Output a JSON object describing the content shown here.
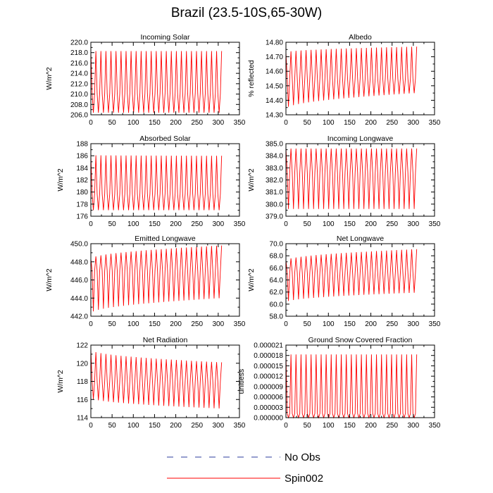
{
  "title": "Brazil (23.5-10S,65-30W)",
  "accent_color": "#ff0000",
  "noobs_color": "#2c3e9e",
  "legend": [
    {
      "label": "No Obs",
      "style": "dashed"
    },
    {
      "label": "Spin002",
      "style": "solid"
    }
  ],
  "chart_data": [
    {
      "type": "line",
      "title": "Incoming Solar",
      "ylabel": "W/m^2",
      "xlim": [
        0,
        350
      ],
      "ylim": [
        206,
        220
      ],
      "xticks": [
        "0",
        "50",
        "100",
        "150",
        "200",
        "250",
        "300",
        "350"
      ],
      "yticks": [
        {
          "v": 206,
          "t": "206.0"
        },
        {
          "v": 208,
          "t": "208.0"
        },
        {
          "v": 210,
          "t": "210.0"
        },
        {
          "v": 212,
          "t": "212.0"
        },
        {
          "v": 214,
          "t": "214.0"
        },
        {
          "v": 216,
          "t": "216.0"
        },
        {
          "v": 218,
          "t": "218.0"
        },
        {
          "v": 220,
          "t": "220.0"
        }
      ],
      "series": [
        {
          "name": "Spin002",
          "years": 26,
          "months_per_year": 12,
          "xmax": 308,
          "segments": [
            {
              "start_low": 206.4,
              "start_high": 218.3,
              "end_low": 206.4,
              "end_high": 218.3,
              "mid": 210.1
            }
          ]
        }
      ]
    },
    {
      "type": "line",
      "title": "Albedo",
      "ylabel": "% reflected",
      "xlim": [
        0,
        350
      ],
      "ylim": [
        14.3,
        14.8
      ],
      "xticks": [
        "0",
        "50",
        "100",
        "150",
        "200",
        "250",
        "300",
        "350"
      ],
      "yticks": [
        {
          "v": 14.3,
          "t": "14.30"
        },
        {
          "v": 14.4,
          "t": "14.40"
        },
        {
          "v": 14.5,
          "t": "14.50"
        },
        {
          "v": 14.6,
          "t": "14.60"
        },
        {
          "v": 14.7,
          "t": "14.70"
        },
        {
          "v": 14.8,
          "t": "14.80"
        }
      ],
      "series": [
        {
          "name": "Spin002",
          "years": 26,
          "months_per_year": 12,
          "xmax": 308,
          "segments": [
            {
              "start_low": 14.34,
              "start_high": 14.73,
              "end_low": 14.45,
              "end_high": 14.77,
              "mid": 14.55
            }
          ]
        }
      ]
    },
    {
      "type": "line",
      "title": "Absorbed Solar",
      "ylabel": "W/m^2",
      "xlim": [
        0,
        350
      ],
      "ylim": [
        176,
        188
      ],
      "xticks": [
        "0",
        "50",
        "100",
        "150",
        "200",
        "250",
        "300",
        "350"
      ],
      "yticks": [
        {
          "v": 176,
          "t": "176"
        },
        {
          "v": 178,
          "t": "178"
        },
        {
          "v": 180,
          "t": "180"
        },
        {
          "v": 182,
          "t": "182"
        },
        {
          "v": 184,
          "t": "184"
        },
        {
          "v": 186,
          "t": "186"
        },
        {
          "v": 188,
          "t": "188"
        }
      ],
      "series": [
        {
          "name": "Spin002",
          "years": 26,
          "months_per_year": 12,
          "xmax": 308,
          "segments": [
            {
              "start_low": 177.0,
              "start_high": 186.1,
              "end_low": 177.0,
              "end_high": 186.0,
              "mid": 179.7
            }
          ]
        }
      ]
    },
    {
      "type": "line",
      "title": "Incoming Longwave",
      "ylabel": "W/m^2",
      "xlim": [
        0,
        350
      ],
      "ylim": [
        379,
        385
      ],
      "xticks": [
        "0",
        "50",
        "100",
        "150",
        "200",
        "250",
        "300",
        "350"
      ],
      "yticks": [
        {
          "v": 379,
          "t": "379.0"
        },
        {
          "v": 380,
          "t": "380.0"
        },
        {
          "v": 381,
          "t": "381.0"
        },
        {
          "v": 382,
          "t": "382.0"
        },
        {
          "v": 383,
          "t": "383.0"
        },
        {
          "v": 384,
          "t": "384.0"
        },
        {
          "v": 385,
          "t": "385.0"
        }
      ],
      "series": [
        {
          "name": "Spin002",
          "years": 26,
          "months_per_year": 12,
          "xmax": 308,
          "segments": [
            {
              "start_low": 379.6,
              "start_high": 384.6,
              "end_low": 379.6,
              "end_high": 384.6,
              "mid": 382.6
            }
          ]
        }
      ]
    },
    {
      "type": "line",
      "title": "Emitted Longwave",
      "ylabel": "W/m^2",
      "xlim": [
        0,
        350
      ],
      "ylim": [
        442,
        450
      ],
      "xticks": [
        "0",
        "50",
        "100",
        "150",
        "200",
        "250",
        "300",
        "350"
      ],
      "yticks": [
        {
          "v": 442,
          "t": "442.0"
        },
        {
          "v": 444,
          "t": "444.0"
        },
        {
          "v": 446,
          "t": "446.0"
        },
        {
          "v": 448,
          "t": "448.0"
        },
        {
          "v": 450,
          "t": "450.0"
        }
      ],
      "series": [
        {
          "name": "Spin002",
          "years": 26,
          "months_per_year": 12,
          "xmax": 308,
          "segments": [
            {
              "start_low": 442.3,
              "start_high": 448.3,
              "end_low": 444.0,
              "end_high": 449.8,
              "mid": 447.0
            }
          ]
        }
      ]
    },
    {
      "type": "line",
      "title": "Net Longwave",
      "ylabel": "W/m^2",
      "xlim": [
        0,
        350
      ],
      "ylim": [
        58,
        70
      ],
      "xticks": [
        "0",
        "50",
        "100",
        "150",
        "200",
        "250",
        "300",
        "350"
      ],
      "yticks": [
        {
          "v": 58,
          "t": "58.0"
        },
        {
          "v": 60,
          "t": "60.0"
        },
        {
          "v": 62,
          "t": "62.0"
        },
        {
          "v": 64,
          "t": "64.0"
        },
        {
          "v": 66,
          "t": "66.0"
        },
        {
          "v": 68,
          "t": "68.0"
        },
        {
          "v": 70,
          "t": "70.0"
        }
      ],
      "series": [
        {
          "name": "Spin002",
          "years": 26,
          "months_per_year": 12,
          "xmax": 308,
          "segments": [
            {
              "start_low": 60.3,
              "start_high": 67.2,
              "end_low": 61.9,
              "end_high": 69.1,
              "mid": 65.2
            }
          ]
        }
      ]
    },
    {
      "type": "line",
      "title": "Net Radiation",
      "ylabel": "W/m^2",
      "xlim": [
        0,
        350
      ],
      "ylim": [
        114,
        122
      ],
      "xticks": [
        "0",
        "50",
        "100",
        "150",
        "200",
        "250",
        "300",
        "350"
      ],
      "yticks": [
        {
          "v": 114,
          "t": "114"
        },
        {
          "v": 116,
          "t": "116"
        },
        {
          "v": 118,
          "t": "118"
        },
        {
          "v": 120,
          "t": "120"
        },
        {
          "v": 122,
          "t": "122"
        }
      ],
      "series": [
        {
          "name": "Spin002",
          "years": 26,
          "months_per_year": 12,
          "xmax": 308,
          "segments": [
            {
              "start_low": 116.2,
              "start_high": 121.5,
              "end_low": 115.0,
              "end_high": 120.1,
              "mid": 118.0
            }
          ]
        }
      ]
    },
    {
      "type": "line",
      "title": "Ground Snow Covered Fraction",
      "ylabel": "unitless",
      "xlim": [
        0,
        350
      ],
      "ylim": [
        0,
        2.1e-05
      ],
      "xticks": [
        "0",
        "50",
        "100",
        "150",
        "200",
        "250",
        "300",
        "350"
      ],
      "yticks": [
        {
          "v": 0,
          "t": "0.000000"
        },
        {
          "v": 3e-06,
          "t": "0.000003"
        },
        {
          "v": 6e-06,
          "t": "0.000006"
        },
        {
          "v": 9e-06,
          "t": "0.000009"
        },
        {
          "v": 1.2e-05,
          "t": "0.000012"
        },
        {
          "v": 1.5e-05,
          "t": "0.000015"
        },
        {
          "v": 1.8e-05,
          "t": "0.000018"
        },
        {
          "v": 2.1e-05,
          "t": "0.000021"
        }
      ],
      "series": [
        {
          "name": "Spin002",
          "years": 26,
          "months_per_year": 12,
          "xmax": 308,
          "segments": [
            {
              "start_low": 0.0,
              "start_high": 1.83e-05,
              "end_low": 0.0,
              "end_high": 1.83e-05,
              "mid": 1.2e-06
            }
          ]
        }
      ]
    }
  ]
}
